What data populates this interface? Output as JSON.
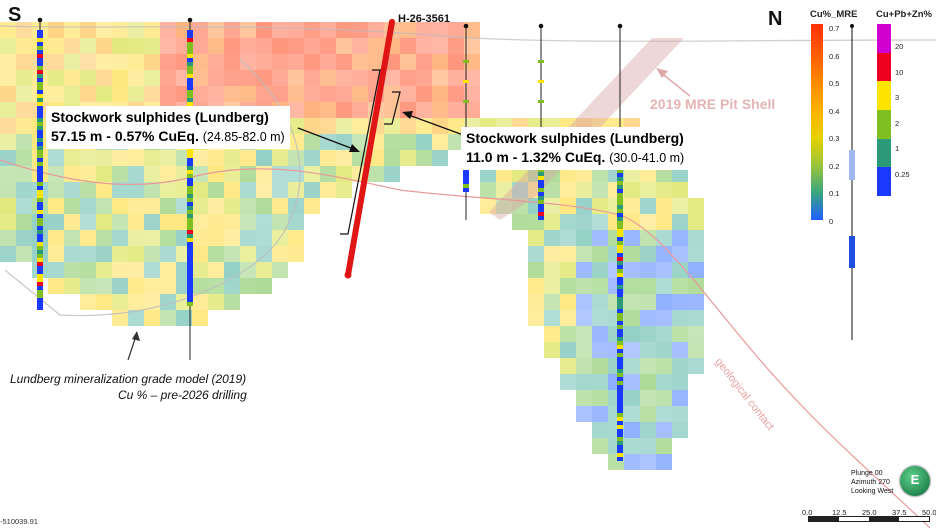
{
  "orientation": {
    "left": "S",
    "right": "N"
  },
  "drill_hole_label": "H-26-3561",
  "pit_shell_label": "2019 MRE Pit Shell",
  "callouts": [
    {
      "title": "Stockwork sulphides (Lundberg)",
      "result": "57.15 m - 0.57% CuEq.",
      "range": "(24.85-82.0 m)"
    },
    {
      "title": "Stockwork sulphides (Lundberg)",
      "result": "11.0 m - 1.32% CuEq.",
      "range": "(30.0-41.0 m)"
    }
  ],
  "model_caption": {
    "line1": "Lundberg mineralization grade model (2019)",
    "line2": "Cu % – pre-2026 drilling"
  },
  "geological_contact_label": "geological contact",
  "legend_mre": {
    "title": "Cu%_MRE",
    "ticks": [
      "0.7",
      "0.6",
      "0.5",
      "0.4",
      "0.3",
      "0.2",
      "0.1",
      "0"
    ],
    "colors": [
      "#ff3000",
      "#ff6a00",
      "#ffa500",
      "#ffd000",
      "#c8d400",
      "#5fb832",
      "#25a08a",
      "#1f5fff"
    ]
  },
  "legend_cpz": {
    "title": "Cu+Pb+Zn%",
    "ticks": [
      "20",
      "10",
      "3",
      "2",
      "1",
      "0.25"
    ],
    "colors": [
      "#d000d0",
      "#f00020",
      "#ffe400",
      "#7fc020",
      "#2a9a78",
      "#1a3aff"
    ]
  },
  "view_info": {
    "plunge": "Plunge 00",
    "azimuth": "Azimuth 270",
    "looking": "Looking West",
    "compass_letter": "E"
  },
  "scale_bar": {
    "labels": [
      "0.0",
      "12.5",
      "25.0",
      "37.5",
      "50.0"
    ]
  },
  "coordinate_label": "-510039.91"
}
